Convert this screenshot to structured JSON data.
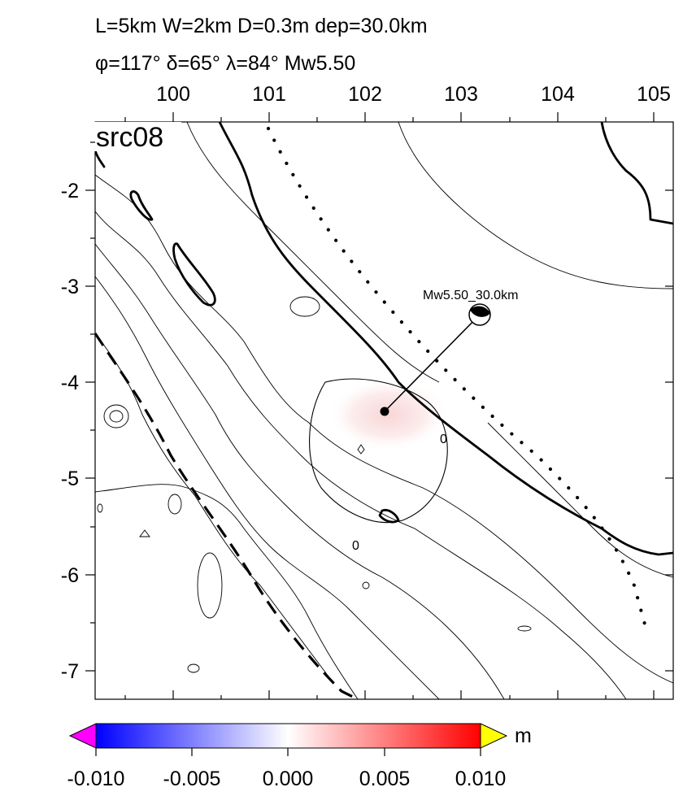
{
  "header": {
    "line1": "L=5km W=2km D=0.3m dep=30.0km",
    "line2": "φ=117° δ=65° λ=84° Mw5.50"
  },
  "map": {
    "panel_label": "src08",
    "x_ticks": [
      "100",
      "101",
      "102",
      "103",
      "104",
      "105"
    ],
    "y_ticks": [
      "-2",
      "-3",
      "-4",
      "-5",
      "-6",
      "-7"
    ],
    "x_range": [
      99.0,
      105.2
    ],
    "y_range": [
      -7.3,
      -1.3
    ],
    "source_label": "Mw5.50_30.0km",
    "contour_zero_labels": [
      "0",
      "0"
    ],
    "epicenter": {
      "lon": 102.2,
      "lat": -4.3
    },
    "beachball": {
      "lon": 103.2,
      "lat": -3.3
    },
    "contour_color": "#000000",
    "slip_patch_color": "#fbe6e6"
  },
  "colorbar": {
    "unit": "m",
    "tick_labels": [
      "-0.010",
      "-0.005",
      "0.000",
      "0.005",
      "0.010"
    ],
    "range": [
      -0.01,
      0.01
    ],
    "colors": {
      "min": "#0000ff",
      "mid": "#ffffff",
      "max": "#ff0000",
      "under": "#ff00ff",
      "over": "#ffff00"
    }
  }
}
